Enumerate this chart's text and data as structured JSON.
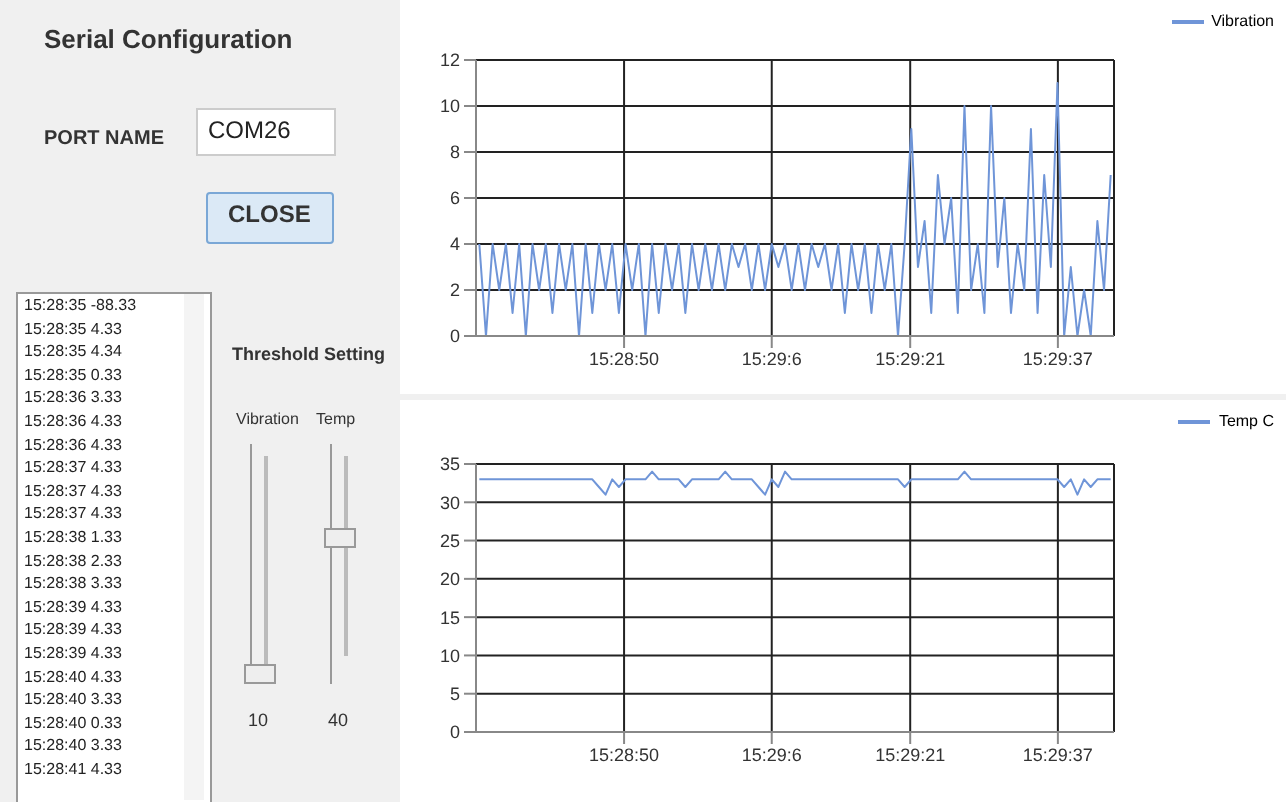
{
  "chart_data": [
    {
      "type": "line",
      "legend": "top right",
      "grid": true,
      "x": [
        15.4762,
        15.4764,
        15.4766,
        15.4768,
        15.477,
        15.4772,
        15.4774,
        15.4776,
        15.4778,
        15.478,
        15.4782,
        15.4784,
        15.4786,
        15.4788,
        15.479,
        15.4792,
        15.4794,
        15.4796,
        15.4798,
        15.48,
        15.4802,
        15.4804,
        15.4806,
        15.4808,
        15.481,
        15.4812,
        15.4814,
        15.4816,
        15.4818,
        15.482,
        15.4822,
        15.4824,
        15.4826,
        15.4828,
        15.483,
        15.4832,
        15.4834,
        15.4836,
        15.4838,
        15.484,
        15.4842,
        15.4844,
        15.4846,
        15.4848,
        15.485,
        15.4852,
        15.4854,
        15.4856,
        15.4858,
        15.486,
        15.4862,
        15.4864,
        15.4866,
        15.4868,
        15.487,
        15.4872,
        15.4874,
        15.4876,
        15.4878,
        15.488,
        15.4882,
        15.4884,
        15.4886,
        15.4888,
        15.489,
        15.4892,
        15.4894,
        15.4896,
        15.4898,
        15.49,
        15.4902,
        15.4904,
        15.4906,
        15.4908,
        15.491,
        15.4912,
        15.4914,
        15.4916,
        15.4918,
        15.492,
        15.4922,
        15.4924,
        15.4926,
        15.4928,
        15.493,
        15.4932,
        15.4934,
        15.4936,
        15.4938,
        15.494,
        15.4942,
        15.4944,
        15.4946,
        15.4948,
        15.495,
        15.4952
      ],
      "series": [
        {
          "name": "Vibration",
          "color": "#6f95d8",
          "values": [
            4,
            0,
            4,
            2,
            4,
            1,
            4,
            0,
            4,
            2,
            4,
            1,
            4,
            2,
            4,
            0,
            4,
            1,
            4,
            2,
            4,
            1,
            4,
            2,
            4,
            0,
            4,
            1,
            4,
            2,
            4,
            1,
            4,
            2,
            4,
            2,
            4,
            2,
            4,
            3,
            4,
            2,
            4,
            2,
            4,
            3,
            4,
            2,
            4,
            2,
            4,
            3,
            4,
            2,
            4,
            1,
            4,
            2,
            4,
            1,
            4,
            2,
            4,
            0,
            4,
            9,
            3,
            5,
            1,
            7,
            4,
            6,
            1,
            10,
            2,
            4,
            1,
            10,
            3,
            6,
            1,
            4,
            2,
            9,
            1,
            7,
            3,
            11,
            0,
            3,
            0,
            2,
            0,
            5,
            2,
            7
          ]
        }
      ],
      "xlim": [
        15.4761,
        15.4953
      ],
      "xticks": [
        {
          "value": 15.480556,
          "label": "15:28:50"
        },
        {
          "value": 15.485,
          "label": "15:29:6"
        },
        {
          "value": 15.489167,
          "label": "15:29:21"
        },
        {
          "value": 15.493611,
          "label": "15:29:37"
        }
      ],
      "ylim": [
        0,
        12
      ],
      "yticks": [
        0,
        2,
        4,
        6,
        8,
        10,
        12
      ]
    },
    {
      "type": "line",
      "legend": "top right",
      "grid": true,
      "x": [
        15.4762,
        15.4764,
        15.4766,
        15.4768,
        15.477,
        15.4772,
        15.4774,
        15.4776,
        15.4778,
        15.478,
        15.4782,
        15.4784,
        15.4786,
        15.4788,
        15.479,
        15.4792,
        15.4794,
        15.4796,
        15.4798,
        15.48,
        15.4802,
        15.4804,
        15.4806,
        15.4808,
        15.481,
        15.4812,
        15.4814,
        15.4816,
        15.4818,
        15.482,
        15.4822,
        15.4824,
        15.4826,
        15.4828,
        15.483,
        15.4832,
        15.4834,
        15.4836,
        15.4838,
        15.484,
        15.4842,
        15.4844,
        15.4846,
        15.4848,
        15.485,
        15.4852,
        15.4854,
        15.4856,
        15.4858,
        15.486,
        15.4862,
        15.4864,
        15.4866,
        15.4868,
        15.487,
        15.4872,
        15.4874,
        15.4876,
        15.4878,
        15.488,
        15.4882,
        15.4884,
        15.4886,
        15.4888,
        15.489,
        15.4892,
        15.4894,
        15.4896,
        15.4898,
        15.49,
        15.4902,
        15.4904,
        15.4906,
        15.4908,
        15.491,
        15.4912,
        15.4914,
        15.4916,
        15.4918,
        15.492,
        15.4922,
        15.4924,
        15.4926,
        15.4928,
        15.493,
        15.4932,
        15.4934,
        15.4936,
        15.4938,
        15.494,
        15.4942,
        15.4944,
        15.4946,
        15.4948,
        15.495,
        15.4952
      ],
      "series": [
        {
          "name": "Temp C",
          "color": "#6f95d8",
          "values": [
            33,
            33,
            33,
            33,
            33,
            33,
            33,
            33,
            33,
            33,
            33,
            33,
            33,
            33,
            33,
            33,
            33,
            33,
            32,
            31,
            33,
            32,
            33,
            33,
            33,
            33,
            34,
            33,
            33,
            33,
            33,
            32,
            33,
            33,
            33,
            33,
            33,
            34,
            33,
            33,
            33,
            33,
            32,
            31,
            33,
            32,
            34,
            33,
            33,
            33,
            33,
            33,
            33,
            33,
            33,
            33,
            33,
            33,
            33,
            33,
            33,
            33,
            33,
            33,
            32,
            33,
            33,
            33,
            33,
            33,
            33,
            33,
            33,
            34,
            33,
            33,
            33,
            33,
            33,
            33,
            33,
            33,
            33,
            33,
            33,
            33,
            33,
            33,
            32,
            33,
            31,
            33,
            32,
            33,
            33,
            33
          ]
        }
      ],
      "xlim": [
        15.4761,
        15.4953
      ],
      "xticks": [
        {
          "value": 15.480556,
          "label": "15:28:50"
        },
        {
          "value": 15.485,
          "label": "15:29:6"
        },
        {
          "value": 15.489167,
          "label": "15:29:21"
        },
        {
          "value": 15.493611,
          "label": "15:29:37"
        }
      ],
      "ylim": [
        0,
        35
      ],
      "yticks": [
        0,
        5,
        10,
        15,
        20,
        25,
        30,
        35
      ]
    },
    {
      "type": "other",
      "annotations": [
        "Serial Configuration",
        "PORT NAME",
        "COM26",
        "CLOSE",
        "Threshold Setting",
        "Vibration",
        "Temp",
        "10",
        "40",
        "15:28:35 -88.33",
        "15:28:35 4.33",
        "15:28:35 4.34",
        "15:28:35 0.33",
        "15:28:36 3.33",
        "15:28:36 4.33",
        "15:28:36 4.33",
        "15:28:37 4.33",
        "15:28:37 4.33",
        "15:28:37 4.33",
        "15:28:38 1.33",
        "15:28:38 2.33",
        "15:28:38 3.33",
        "15:28:39 4.33",
        "15:28:39 4.33",
        "15:28:39 4.33",
        "15:28:40 4.33",
        "15:28:40 3.33",
        "15:28:40 0.33",
        "15:28:40 3.33",
        "15:28:41 4.33"
      ]
    }
  ]
}
